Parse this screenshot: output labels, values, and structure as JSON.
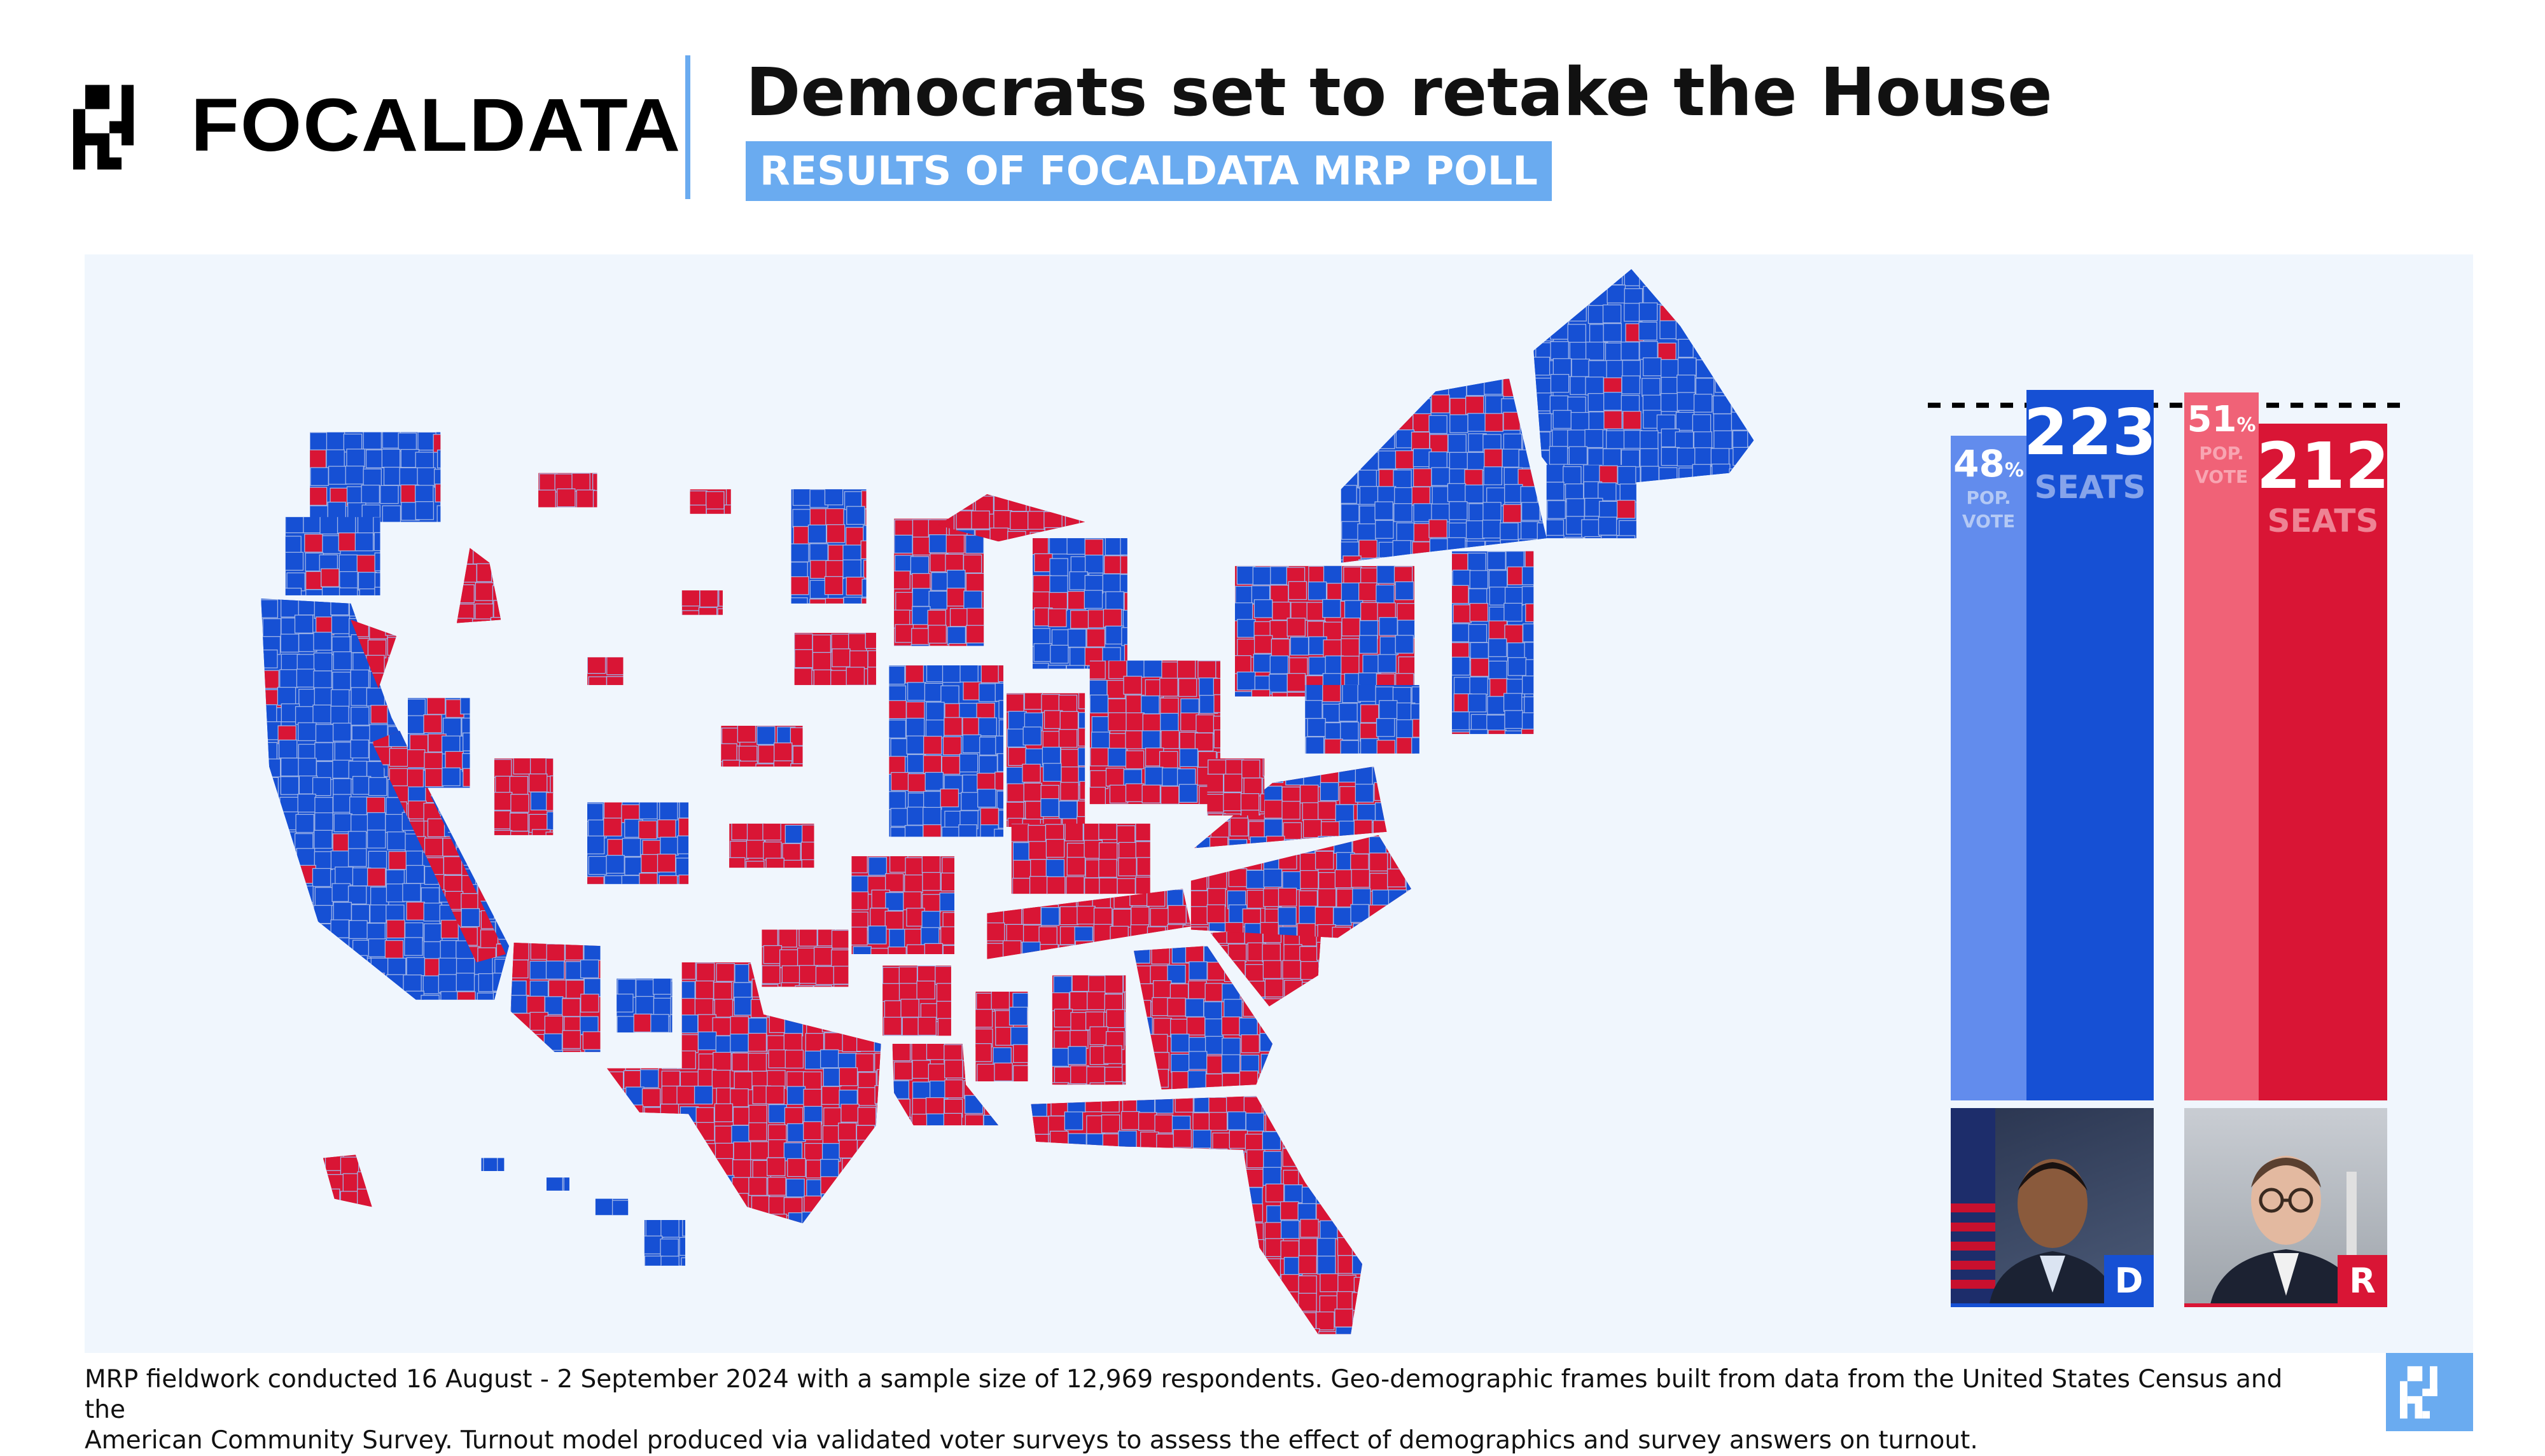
{
  "header": {
    "brand": "FOCALDATA",
    "title": "Democrats set to retake the House",
    "subtitle": "RESULTS OF FOCALDATA MRP POLL"
  },
  "colors": {
    "dem_seats": "#1650d4",
    "dem_pop": "#628ced",
    "rep_seats": "#d91535",
    "rep_pop": "#f06277",
    "accent": "#6aabf0",
    "panel": "#f0f6fd"
  },
  "results": {
    "dem": {
      "pop_value": "48",
      "pop_unit": "%",
      "pop_label_1": "POP.",
      "pop_label_2": "VOTE",
      "seats": "223",
      "seats_label": "SEATS",
      "badge": "D"
    },
    "rep": {
      "pop_value": "51",
      "pop_unit": "%",
      "pop_label_1": "POP.",
      "pop_label_2": "VOTE",
      "seats": "212",
      "seats_label": "SEATS",
      "badge": "R"
    }
  },
  "chart_data": {
    "type": "bar",
    "categories": [
      "D",
      "R"
    ],
    "series": [
      {
        "name": "POP. VOTE",
        "values": [
          48,
          51
        ],
        "unit": "%"
      },
      {
        "name": "SEATS",
        "values": [
          223,
          212
        ]
      }
    ],
    "reference_line": "dashed"
  },
  "map": {
    "type": "district choropleth",
    "colors": [
      "#1650d4",
      "#d91535"
    ]
  },
  "footer": {
    "line1": "MRP fieldwork conducted 16 August - 2 September 2024 with a sample size of 12,969 respondents. Geo-demographic frames built from data from the United States Census and the",
    "line2": "American Community Survey. Turnout model produced via validated voter surveys to assess the effect of demographics and survey answers on turnout."
  }
}
